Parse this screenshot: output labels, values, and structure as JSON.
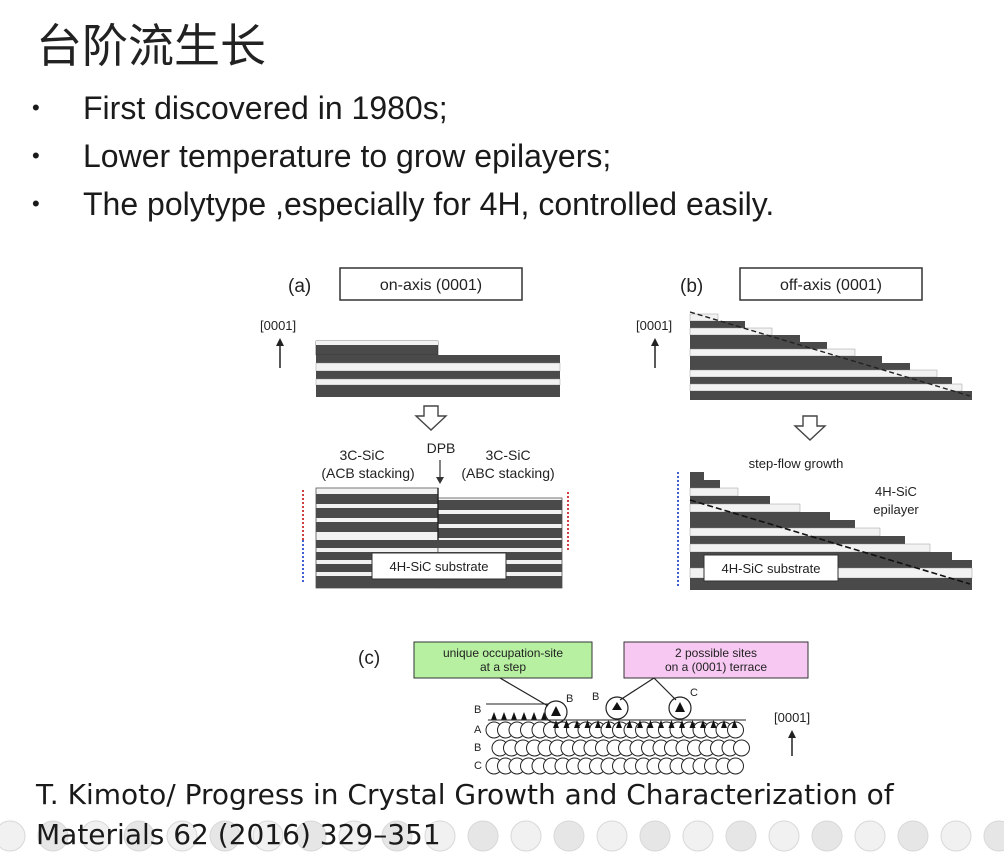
{
  "slide": {
    "title": "台阶流生长",
    "bullets": [
      "First discovered in 1980s;",
      "Lower temperature to grow epilayers;",
      "The polytype ,especially for 4H, controlled easily."
    ],
    "citation_line1": "T. Kimoto/ Progress in Crystal Growth and Characterization of",
    "citation_line2": "Materials 62 (2016) 329–351"
  },
  "figure": {
    "panel_a": {
      "label": "(a)",
      "box_text": "on-axis (0001)",
      "axis_label": "[0001]",
      "left_label_line1": "3C-SiC",
      "left_label_line2": "(ACB stacking)",
      "dpb_label": "DPB",
      "right_label_line1": "3C-SiC",
      "right_label_line2": "(ABC stacking)",
      "substrate_label": "4H-SiC substrate"
    },
    "panel_b": {
      "label": "(b)",
      "box_text": "off-axis (0001)",
      "axis_label": "[0001]",
      "step_flow_label": "step-flow growth",
      "epilayer_line1": "4H-SiC",
      "epilayer_line2": "epilayer",
      "substrate_label": "4H-SiC substrate"
    },
    "panel_c": {
      "label": "(c)",
      "green_box_line1": "unique occupation-site",
      "green_box_line2": "at a step",
      "pink_box_line1": "2 possible sites",
      "pink_box_line2": "on a (0001) terrace",
      "site_b1": "B",
      "site_b2": "B",
      "site_c": "C",
      "row_labels": [
        "B",
        "A",
        "B",
        "C"
      ],
      "axis_label": "[0001]"
    },
    "colors": {
      "dark_layer": "#4a4a4a",
      "light_layer": "#f2f2f2",
      "green_box": "#b6f0a0",
      "pink_box": "#f7c8f2"
    }
  }
}
